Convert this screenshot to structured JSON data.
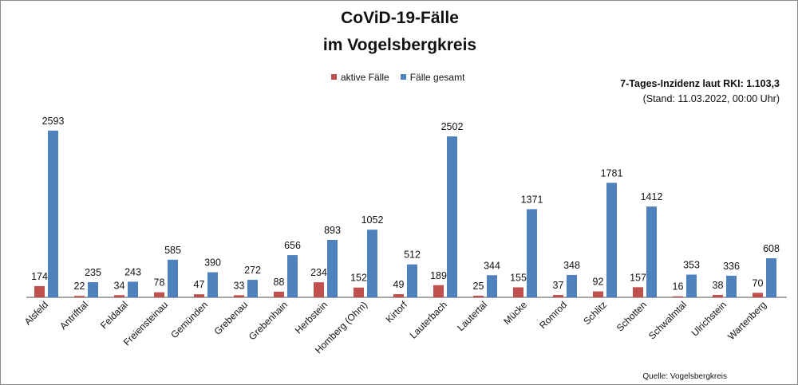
{
  "chart_data": {
    "type": "bar",
    "title": [
      "CoViD-19-Fälle",
      "im Vogelsbergkreis"
    ],
    "categories": [
      "Alsfeld",
      "Antrifttal",
      "Feldatal",
      "Freiensteinau",
      "Gemünden",
      "Grebenau",
      "Grebenhain",
      "Herbstein",
      "Homberg (Ohm)",
      "Kirtorf",
      "Lauterbach",
      "Lautertal",
      "Mücke",
      "Romrod",
      "Schlitz",
      "Schotten",
      "Schwalmtal",
      "Ulrichstein",
      "Wartenberg"
    ],
    "series": [
      {
        "name": "aktive Fälle",
        "color": "#c0504d",
        "values": [
          174,
          22,
          34,
          78,
          47,
          33,
          88,
          234,
          152,
          49,
          189,
          25,
          155,
          37,
          92,
          157,
          16,
          38,
          70
        ]
      },
      {
        "name": "Fälle gesamt",
        "color": "#4f81bd",
        "values": [
          2593,
          235,
          243,
          585,
          390,
          272,
          656,
          893,
          1052,
          512,
          2502,
          344,
          1371,
          348,
          1781,
          1412,
          353,
          336,
          608
        ]
      }
    ],
    "ylim": [
      0,
      3000
    ],
    "grid": false,
    "legend": "top-center",
    "annotation": {
      "line1": "7-Tages-Inzidenz laut RKI: 1.103,3",
      "line2": "(Stand: 11.03.2022, 00:00 Uhr)"
    },
    "source": "Quelle: Vogelsbergkreis"
  }
}
